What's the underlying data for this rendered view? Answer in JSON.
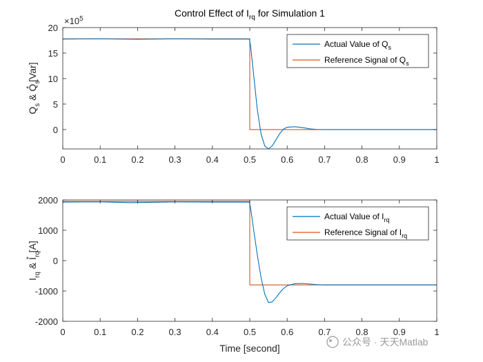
{
  "chart_data": [
    {
      "type": "line",
      "title": "Control Effect of I",
      "title_sub": "rq",
      "title_end": " for Simulation 1",
      "ylabel_parts": [
        "Q",
        "s",
        " & Q",
        "s",
        "*",
        " [Var]"
      ],
      "y_exponent_label": "×10",
      "y_exponent_power": "5",
      "xlim": [
        0,
        1
      ],
      "ylim": [
        -3.8,
        20
      ],
      "xticks": [
        "0",
        "0.1",
        "0.2",
        "0.3",
        "0.4",
        "0.5",
        "0.6",
        "0.7",
        "0.8",
        "0.9",
        "1"
      ],
      "yticks": [
        0,
        5,
        10,
        15,
        20
      ],
      "ytick_labels": [
        "0",
        "5",
        "10",
        "15",
        "20"
      ],
      "legend_position": "top-right",
      "series": [
        {
          "name_main": "Actual Value of Q",
          "name_sub": "s",
          "color": "#0072BD",
          "points": [
            [
              0,
              17.75
            ],
            [
              0.1,
              17.8
            ],
            [
              0.2,
              17.7
            ],
            [
              0.3,
              17.8
            ],
            [
              0.4,
              17.75
            ],
            [
              0.499,
              17.75
            ],
            [
              0.502,
              16.5
            ],
            [
              0.51,
              11
            ],
            [
              0.52,
              4
            ],
            [
              0.53,
              -0.8
            ],
            [
              0.54,
              -3.2
            ],
            [
              0.55,
              -3.8
            ],
            [
              0.56,
              -3.2
            ],
            [
              0.57,
              -2.0
            ],
            [
              0.58,
              -0.8
            ],
            [
              0.59,
              0.1
            ],
            [
              0.6,
              0.45
            ],
            [
              0.62,
              0.55
            ],
            [
              0.64,
              0.4
            ],
            [
              0.66,
              0.15
            ],
            [
              0.68,
              0.02
            ],
            [
              0.7,
              0
            ],
            [
              1,
              0
            ]
          ]
        },
        {
          "name_main": "Reference Signal of Q",
          "name_sub": "s",
          "color": "#D95319",
          "points": [
            [
              0,
              17.8
            ],
            [
              0.5,
              17.8
            ],
            [
              0.5,
              0
            ],
            [
              1,
              0
            ]
          ]
        }
      ]
    },
    {
      "type": "line",
      "xlabel": "Time [second]",
      "ylabel_parts": [
        "I",
        "rq",
        " & I",
        "rq",
        "*",
        " [A]"
      ],
      "xlim": [
        0,
        1
      ],
      "ylim": [
        -2000,
        2000
      ],
      "xticks": [
        "0",
        "0.1",
        "0.2",
        "0.3",
        "0.4",
        "0.5",
        "0.6",
        "0.7",
        "0.8",
        "0.9",
        "1"
      ],
      "yticks": [
        -2000,
        -1000,
        0,
        1000,
        2000
      ],
      "ytick_labels": [
        "-2000",
        "-1000",
        "0",
        "1000",
        "2000"
      ],
      "legend_position": "top-right",
      "series": [
        {
          "name_main": "Actual Value of I",
          "name_sub": "rq",
          "color": "#0072BD",
          "points": [
            [
              0,
              1930
            ],
            [
              0.1,
              1940
            ],
            [
              0.18,
              1910
            ],
            [
              0.3,
              1935
            ],
            [
              0.4,
              1930
            ],
            [
              0.499,
              1930
            ],
            [
              0.502,
              1750
            ],
            [
              0.51,
              1050
            ],
            [
              0.52,
              200
            ],
            [
              0.53,
              -550
            ],
            [
              0.54,
              -1100
            ],
            [
              0.55,
              -1380
            ],
            [
              0.56,
              -1360
            ],
            [
              0.57,
              -1220
            ],
            [
              0.58,
              -1060
            ],
            [
              0.59,
              -920
            ],
            [
              0.6,
              -830
            ],
            [
              0.62,
              -760
            ],
            [
              0.64,
              -750
            ],
            [
              0.66,
              -770
            ],
            [
              0.68,
              -790
            ],
            [
              0.7,
              -800
            ],
            [
              1,
              -800
            ]
          ]
        },
        {
          "name_main": "Reference Signal of I",
          "name_sub": "rq",
          "color": "#D95319",
          "points": [
            [
              0,
              1950
            ],
            [
              0.5,
              1950
            ],
            [
              0.5,
              -800
            ],
            [
              1,
              -800
            ]
          ]
        }
      ]
    }
  ],
  "watermark": "公众号 · 天天Matlab"
}
